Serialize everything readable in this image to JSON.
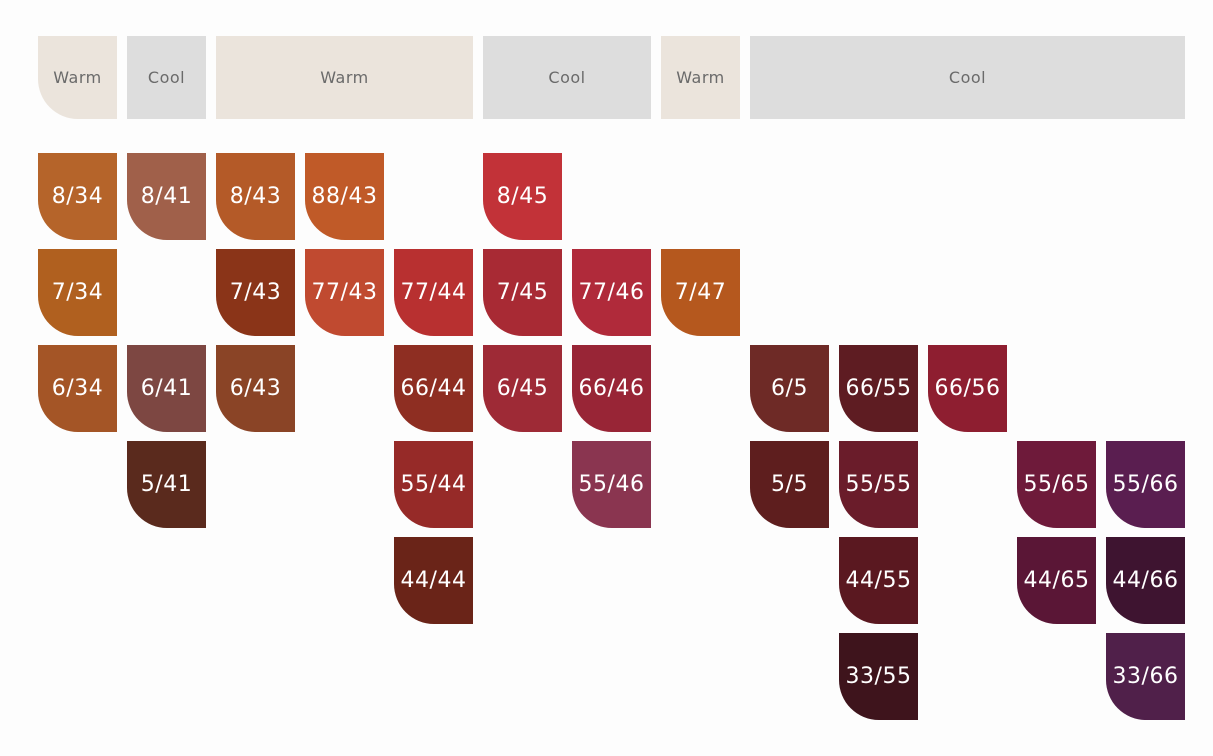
{
  "groups": [
    {
      "label": "Warm",
      "tone": "warm",
      "columns": [
        [
          {
            "label": "8/34",
            "color": "#b5642a"
          },
          {
            "label": "7/34",
            "color": "#b0601f"
          },
          {
            "label": "6/34",
            "color": "#a45526"
          }
        ]
      ]
    },
    {
      "label": "Cool",
      "tone": "cool",
      "columns": [
        [
          {
            "label": "8/41",
            "color": "#a0604a"
          },
          null,
          {
            "label": "6/41",
            "color": "#7d4742"
          },
          {
            "label": "5/41",
            "color": "#5a2a1d"
          }
        ]
      ]
    },
    {
      "label": "Warm",
      "tone": "warm",
      "columns": [
        [
          {
            "label": "8/43",
            "color": "#b45a28"
          },
          {
            "label": "7/43",
            "color": "#8a3418"
          },
          {
            "label": "6/43",
            "color": "#8a4426"
          }
        ],
        [
          {
            "label": "88/43",
            "color": "#c05a28"
          },
          {
            "label": "77/43",
            "color": "#c04a30"
          }
        ],
        [
          null,
          {
            "label": "77/44",
            "color": "#b83030"
          },
          {
            "label": "66/44",
            "color": "#8e2e22"
          },
          {
            "label": "55/44",
            "color": "#962a28"
          },
          {
            "label": "44/44",
            "color": "#6a2418"
          }
        ]
      ]
    },
    {
      "label": "Cool",
      "tone": "cool",
      "columns": [
        [
          {
            "label": "8/45",
            "color": "#c23238"
          },
          {
            "label": "7/45",
            "color": "#a82a34"
          },
          {
            "label": "6/45",
            "color": "#9e2a36"
          }
        ],
        [
          null,
          {
            "label": "77/46",
            "color": "#b02a3a"
          },
          {
            "label": "66/46",
            "color": "#982536"
          },
          {
            "label": "55/46",
            "color": "#8a3550"
          }
        ]
      ]
    },
    {
      "label": "Warm",
      "tone": "warm",
      "columns": [
        [
          null,
          {
            "label": "7/47",
            "color": "#b5581e"
          }
        ]
      ]
    },
    {
      "label": "Cool",
      "tone": "cool",
      "columns": [
        [
          null,
          null,
          {
            "label": "6/5",
            "color": "#6e2a26"
          },
          {
            "label": "5/5",
            "color": "#5e1e1e"
          }
        ],
        [
          null,
          null,
          {
            "label": "66/55",
            "color": "#5e1c22"
          },
          {
            "label": "55/55",
            "color": "#6a1c2a"
          },
          {
            "label": "44/55",
            "color": "#5a1820"
          },
          {
            "label": "33/55",
            "color": "#3e141c"
          }
        ],
        [
          null,
          null,
          {
            "label": "66/56",
            "color": "#8e1e30"
          }
        ],
        [
          null,
          null,
          null,
          {
            "label": "55/65",
            "color": "#6e1a3a"
          },
          {
            "label": "44/65",
            "color": "#5a1636"
          }
        ],
        [
          null,
          null,
          null,
          {
            "label": "55/66",
            "color": "#5a1e50"
          },
          {
            "label": "44/66",
            "color": "#3e1430"
          },
          {
            "label": "33/66",
            "color": "#50204a"
          }
        ]
      ]
    }
  ]
}
